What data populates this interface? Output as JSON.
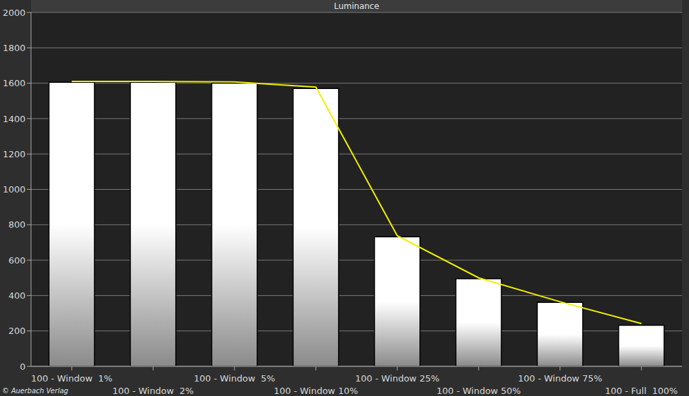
{
  "chart_data": {
    "type": "bar",
    "title": "Luminance",
    "categories": [
      "100 - Window  1%",
      "100 - Window  2%",
      "100 - Window  5%",
      "100 - Window 10%",
      "100 - Window 25%",
      "100 - Window 50%",
      "100 - Window 75%",
      "100 - Full  100%"
    ],
    "series": [
      {
        "type": "bar",
        "color": "#ffffff",
        "values": [
          1605,
          1605,
          1600,
          1570,
          732,
          495,
          362,
          232
        ]
      },
      {
        "type": "line",
        "color": "#f0f000",
        "marker": "none",
        "values": [
          1610,
          1610,
          1607,
          1578,
          738,
          500,
          365,
          242
        ]
      }
    ],
    "ylim": [
      0,
      2000
    ],
    "yticks": [
      0,
      200,
      400,
      600,
      800,
      1000,
      1200,
      1400,
      1600,
      1800,
      2000
    ],
    "grid": true,
    "annotations": [
      "© Auerbach Verlag"
    ]
  }
}
